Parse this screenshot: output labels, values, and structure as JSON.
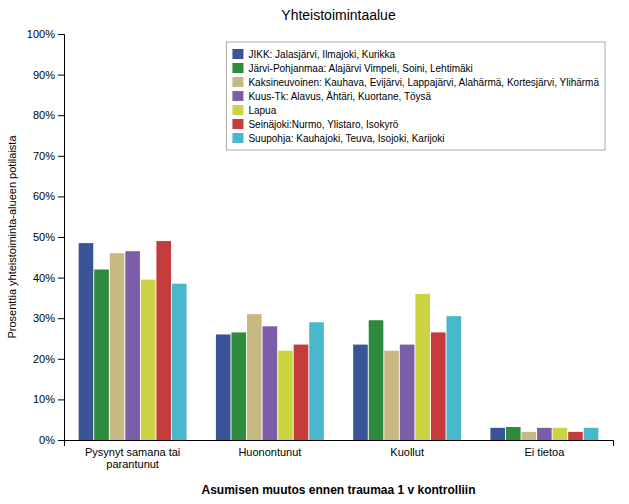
{
  "chart_data": {
    "type": "bar",
    "title": "Yhteistoimintaalue",
    "xlabel": "Asumisen muutos ennen traumaa 1 v kontrolliin",
    "ylabel": "Prosenttia yhteistoiminta-alueen potilaista",
    "categories": [
      "Pysynyt samana tai\nparantunut",
      "Huonontunut",
      "Kuollut",
      "Ei tietoa"
    ],
    "series": [
      {
        "name": "JIKK: Jalasjärvi, Ilmajoki, Kurikka",
        "color": "#3a5498",
        "values": [
          48.5,
          26.0,
          23.5,
          3.0
        ]
      },
      {
        "name": "Järvi-Pohjanmaa: Alajärvi Vimpeli, Soini, Lehtimäki",
        "color": "#2e8b3e",
        "values": [
          42.0,
          26.5,
          29.5,
          3.2
        ]
      },
      {
        "name": "Kaksineuvoinen: Kauhava, Evijärvi, Lappajärvi, Alahärmä, Kortesjärvi, Ylihärmä",
        "color": "#c8b882",
        "values": [
          46.0,
          31.0,
          22.0,
          2.0
        ]
      },
      {
        "name": "Kuus-Tk: Alavus, Ähtäri, Kuortane, Töysä",
        "color": "#7b5ea7",
        "values": [
          46.5,
          28.0,
          23.5,
          3.0
        ]
      },
      {
        "name": "Lapua",
        "color": "#cdd444",
        "values": [
          39.5,
          22.0,
          36.0,
          3.0
        ]
      },
      {
        "name": "Seinäjoki:Nurmo, Ylistaro, Isokyrö",
        "color": "#c63c3c",
        "values": [
          49.0,
          23.5,
          26.5,
          2.0
        ]
      },
      {
        "name": "Suupohja: Kauhajoki, Teuva, Isojoki, Karijoki",
        "color": "#4ab8cc",
        "values": [
          38.5,
          29.0,
          30.5,
          3.0
        ]
      }
    ],
    "ylim": [
      0,
      100
    ],
    "yticks": [
      {
        "value": 0,
        "label": "0%"
      },
      {
        "value": 10,
        "label": "10%"
      },
      {
        "value": 20,
        "label": "20%"
      },
      {
        "value": 30,
        "label": "30%"
      },
      {
        "value": 40,
        "label": "40%"
      },
      {
        "value": 50,
        "label": "50%"
      },
      {
        "value": 60,
        "label": "60%"
      },
      {
        "value": 70,
        "label": "70%"
      },
      {
        "value": 80,
        "label": "80%"
      },
      {
        "value": 90,
        "label": "90%"
      },
      {
        "value": 100,
        "label": "100%"
      }
    ],
    "grid": false,
    "legend": "upper right"
  }
}
